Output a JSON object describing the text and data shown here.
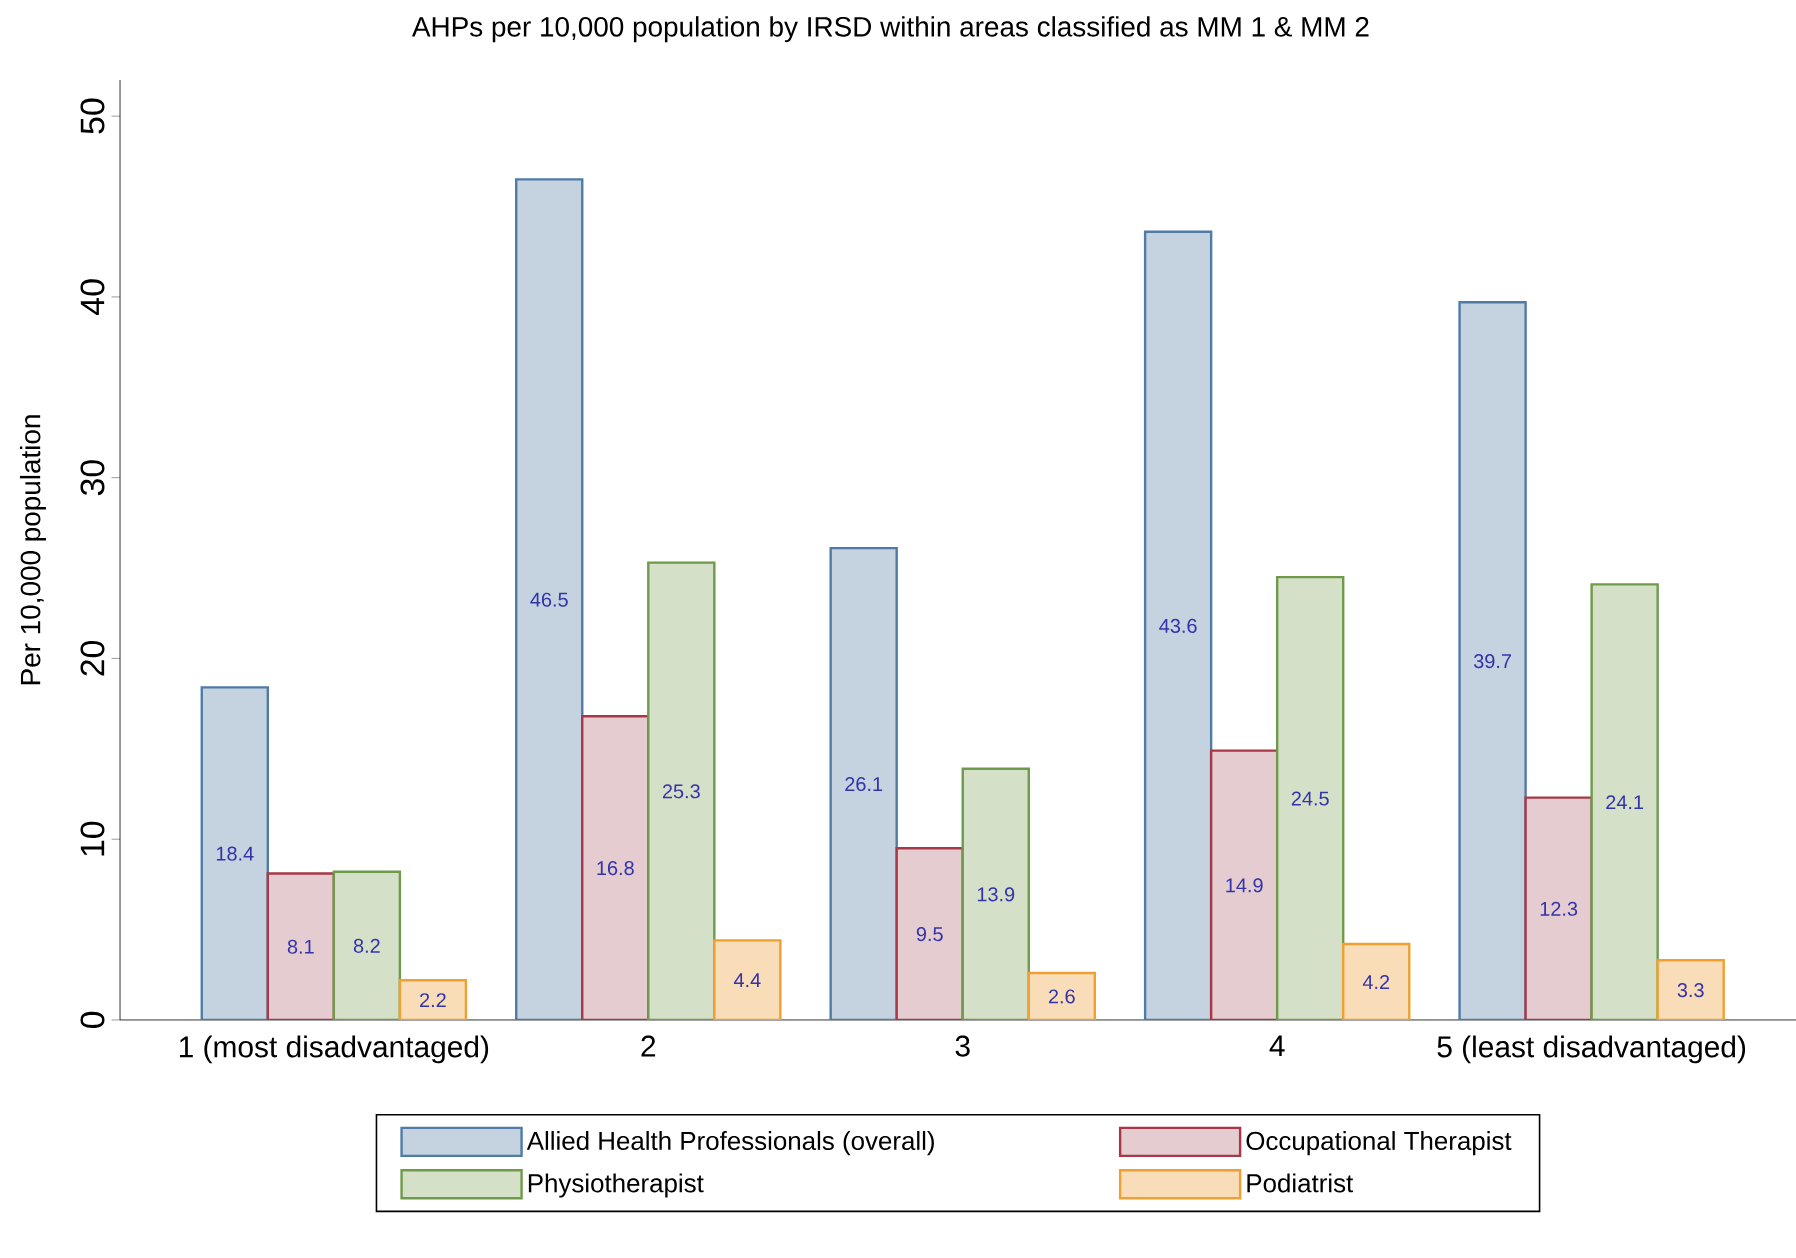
{
  "chart_data": {
    "type": "bar",
    "title": "AHPs per 10,000 population by IRSD within areas classified as MM 1 & MM 2",
    "ylabel": "Per 10,000 population",
    "categories": [
      "1 (most disadvantaged)",
      "2",
      "3",
      "4",
      "5 (least disadvantaged)"
    ],
    "series": [
      {
        "name": "Allied Health Professionals (overall)",
        "color": "#c5d3e0",
        "values": [
          18.4,
          46.5,
          26.1,
          43.6,
          39.7
        ]
      },
      {
        "name": "Occupational Therapist",
        "color": "#e4ccd0",
        "values": [
          8.1,
          16.8,
          9.5,
          14.9,
          12.3
        ]
      },
      {
        "name": "Physiotherapist",
        "color": "#d5e0c8",
        "values": [
          8.2,
          25.3,
          13.9,
          24.5,
          24.1
        ]
      },
      {
        "name": "Podiatrist",
        "color": "#f9dcb8",
        "values": [
          2.2,
          4.4,
          2.6,
          4.2,
          3.3
        ]
      }
    ],
    "ylim": [
      0,
      52
    ],
    "yticks": [
      0,
      10,
      20,
      30,
      40,
      50
    ],
    "data_labels": true,
    "grid": false,
    "legend": "bottom"
  }
}
